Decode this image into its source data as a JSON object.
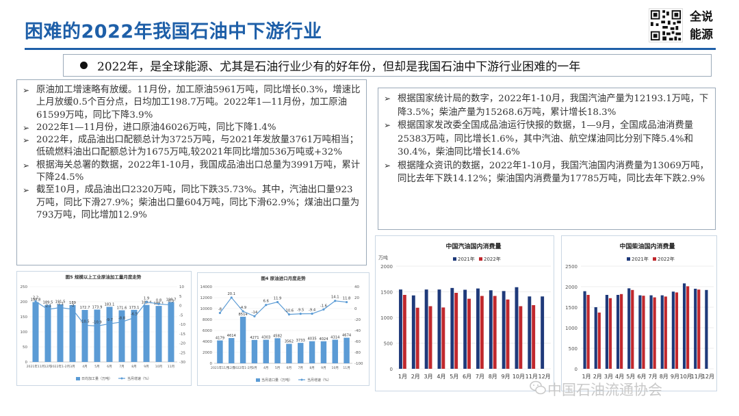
{
  "header": {
    "title": "困难的2022年我国石油中下游行业",
    "brand": [
      "全说",
      "能源"
    ]
  },
  "banner": {
    "text": "2022年，是全球能源、尤其是石油行业少有的好年份，但却是我国石油中下游行业困难的一年"
  },
  "left_points": [
    "原油加工增速略有放缓。11月份，加工原油5961万吨，同比增长0.3%，增速比上月放缓0.5个百分点，日均加工198.7万吨。2022年1—11月份，加工原油61599万吨，同比下降3.9%",
    "2022年1—11月份，进口原油46026万吨，同比下降1.4%",
    "2022年，成品油出口配额总计为3725万吨，与2021年发放量3761万吨相当；低硫燃料油出口配额总计为1675万吨,较2021年同比增加536万吨或+32%",
    "根据海关总署的数据，2022年1-10月，我国成品油出口总量为3991万吨，累计下降24.5%",
    "截至10月，成品油出口2320万吨，同比下跌35.73%。其中，汽油出口量923万吨，同比下滑27.9%；柴油出口量604万吨，同比下滑62.9%；煤油出口量为793万吨，同比增加12.9%"
  ],
  "right_points": [
    "根据国家统计局的数字，2022年1-10月，我国汽油产量为12193.1万吨，下降3.5%；柴油产量为15268.6万吨，累计增长18.3%",
    "根据国家发改委全国成品油运行快报的数据，1—9月，全国成品油消费量25383万吨，同比增长1.6%，其中汽油、航空煤油同比分别下降5.4%和30.4%，柴油同比增长14.6%",
    "根据隆众资讯的数据，2022年1-10月，我国汽油国内消费量为13069万吨，同比去年下跌14.12%；柴油国内消费量为17785万吨，同比去年下跌2.9%"
  ],
  "colors": {
    "title": "#1e5fa8",
    "bar_blue": "#5b9bd5",
    "bar_navy": "#1f3a7a",
    "bar_red": "#c0282d",
    "line_blue": "#5b9bd5"
  },
  "footer": {
    "text": "中国石油流通协会",
    "icon": "wechat-icon"
  },
  "chart_data": [
    {
      "type": "bar",
      "title": "图5 规模以上工业原油加工量月度走势",
      "categories": [
        "2021年11月",
        "12月",
        "2022年1-2月",
        "3月",
        "4月",
        "5月",
        "6月",
        "7月",
        "8月",
        "9月",
        "10月",
        "11月"
      ],
      "series": [
        {
          "name": "日均加工量（万吨）",
          "values": [
            198.8,
            189.5,
            191.5,
            189.0,
            172.7,
            173.9,
            183.1,
            171.6,
            173.1,
            189.4,
            186.1,
            198.7
          ]
        },
        {
          "name": "当月增速（%）",
          "values": [
            2.2,
            -2.1,
            -1.1,
            -2.0,
            -10.5,
            -10.9,
            -9.7,
            -8.8,
            -6.5,
            1.9,
            0.8,
            0.3
          ]
        }
      ],
      "ylim": [
        0,
        250
      ],
      "y2lim": [
        -30,
        10
      ],
      "y_ticks": [
        "0",
        "50",
        "100",
        "150",
        "200",
        "250"
      ],
      "y2_ticks": [
        "-30",
        "-25",
        "-20",
        "-15",
        "-10",
        "-5",
        "0",
        "5",
        "10"
      ]
    },
    {
      "type": "bar",
      "title": "图4 原油进口月度走势",
      "categories": [
        "2021年11月",
        "12月",
        "2022年1-2月",
        "3月",
        "4月",
        "5月",
        "6月",
        "7月",
        "8月",
        "9月",
        "10月",
        "11月"
      ],
      "series": [
        {
          "name": "当月进口量（万吨）",
          "values": [
            4179,
            4614,
            8514,
            4271,
            4303,
            4582,
            3562,
            3733,
            4035,
            4024,
            4314,
            4674
          ]
        },
        {
          "name": "当月增速（%）",
          "values": [
            -8.0,
            20.1,
            -4.9,
            -14.0,
            6.6,
            11.9,
            -10.6,
            -9.5,
            -9.4,
            -1.6,
            14.1,
            11.8
          ]
        }
      ],
      "ylim": [
        0,
        14000
      ],
      "y2lim": [
        -100,
        40
      ],
      "y_ticks": [
        "0",
        "2000",
        "4000",
        "6000",
        "8000",
        "10000",
        "12000",
        "14000"
      ],
      "y2_ticks": [
        "-100",
        "-80",
        "-60",
        "-40",
        "-20",
        "0",
        "20",
        "40"
      ]
    },
    {
      "type": "bar",
      "title": "中国汽油国内消费量",
      "unit": "万吨",
      "categories": [
        "1月",
        "2月",
        "3月",
        "4月",
        "5月",
        "6月",
        "7月",
        "8月",
        "9月",
        "10月",
        "11月",
        "12月"
      ],
      "series": [
        {
          "name": "2021年",
          "values": [
            1545,
            1430,
            1545,
            1545,
            1575,
            1540,
            1565,
            1530,
            1515,
            1590,
            1410,
            1410
          ]
        },
        {
          "name": "2022年",
          "values": [
            1440,
            1190,
            1220,
            1195,
            1480,
            1365,
            1420,
            1420,
            1350,
            1220,
            1240,
            null
          ]
        }
      ],
      "ylim": [
        0,
        2000
      ],
      "y_ticks": [
        "0",
        "500",
        "1000",
        "1500",
        "2000"
      ]
    },
    {
      "type": "bar",
      "title": "中国柴油国内消费量",
      "categories": [
        "1月",
        "2月",
        "3月",
        "4月",
        "5月",
        "6月",
        "7月",
        "8月",
        "9月",
        "10月",
        "11月",
        "12月"
      ],
      "series": [
        {
          "name": "2021年",
          "values": [
            1890,
            1500,
            1800,
            1800,
            1960,
            1790,
            1790,
            1790,
            1880,
            2080,
            1950,
            1920
          ]
        },
        {
          "name": "2022年",
          "values": [
            1800,
            1370,
            1720,
            1820,
            1920,
            1780,
            1740,
            1760,
            1860,
            2010,
            1930,
            null
          ]
        }
      ],
      "ylim": [
        0,
        2500
      ],
      "y_ticks": [
        "0",
        "500",
        "1000",
        "1500",
        "2000",
        "2500"
      ]
    }
  ]
}
